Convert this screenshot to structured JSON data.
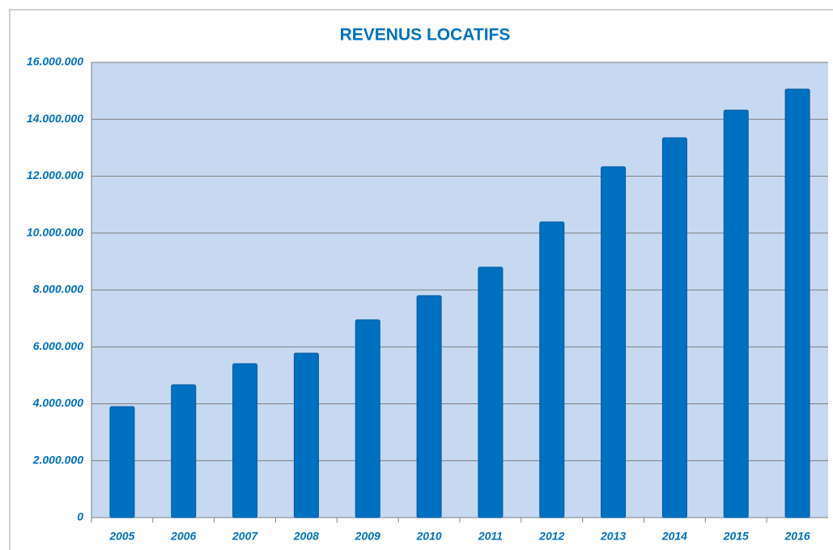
{
  "chart_data": {
    "type": "bar",
    "title": "REVENUS LOCATIFS",
    "categories": [
      "2005",
      "2006",
      "2007",
      "2008",
      "2009",
      "2010",
      "2011",
      "2012",
      "2013",
      "2014",
      "2015",
      "2016"
    ],
    "values": [
      3900000,
      4670000,
      5410000,
      5780000,
      6950000,
      7800000,
      8800000,
      10390000,
      12330000,
      13350000,
      14320000,
      15060000
    ],
    "color": "#0070c0",
    "ylim": [
      0,
      16000000
    ],
    "yticks": [
      0,
      {
        "value": 2000000,
        "label": "2.000.000"
      },
      {
        "value": 4000000,
        "label": "4.000.000"
      },
      {
        "value": 6000000,
        "label": "6.000.000"
      },
      {
        "value": 8000000,
        "label": "8.000.000"
      },
      {
        "value": 10000000,
        "label": "10.000.000"
      },
      {
        "value": 12000000,
        "label": "12.000.000"
      },
      {
        "value": 14000000,
        "label": "14.000.000"
      },
      {
        "value": 16000000,
        "label": "16.000.000"
      }
    ],
    "grid": true
  }
}
